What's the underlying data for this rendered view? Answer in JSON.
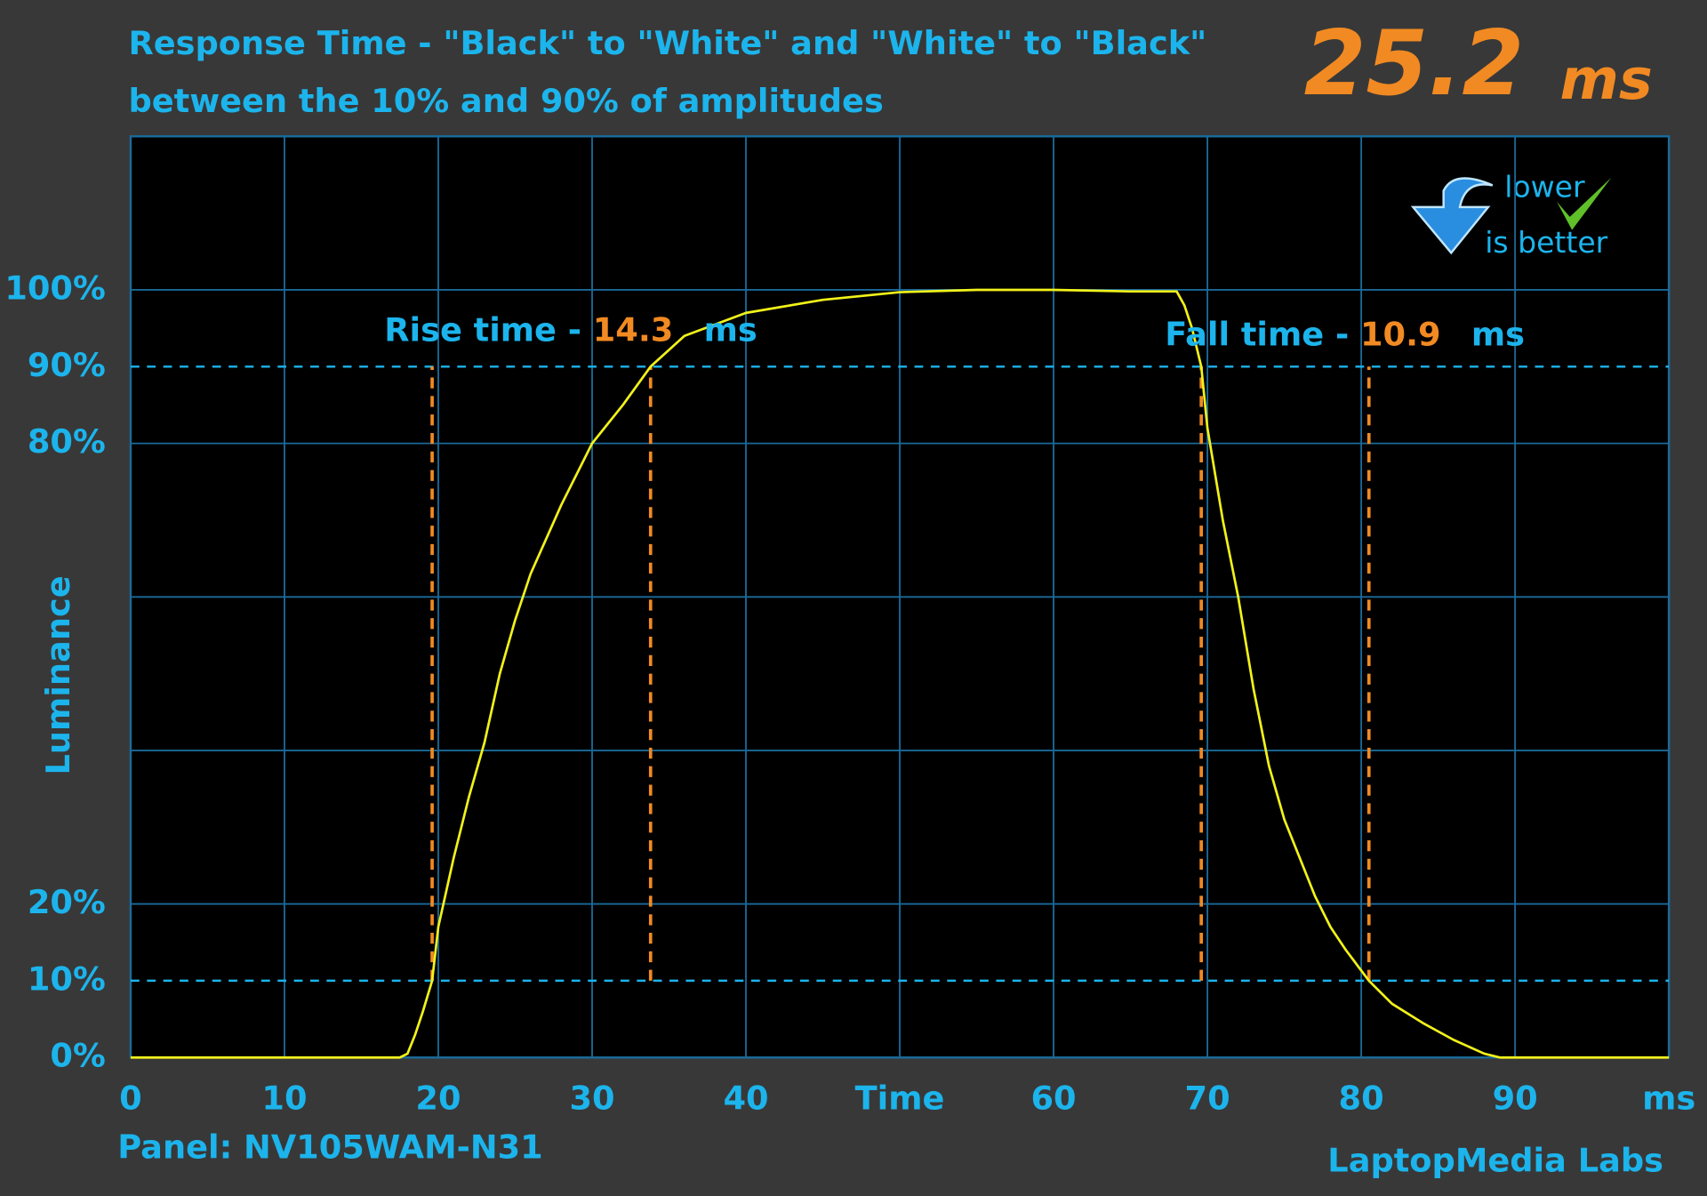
{
  "chart_data": {
    "type": "line",
    "title": "Response Time - \"Black\" to \"White\" and \"White\" to \"Black\"",
    "subtitle": "between the 10% and 90% of amplitudes",
    "result": {
      "value": 25.2,
      "unit": "ms"
    },
    "badge": {
      "line1": "lower",
      "line2": "is better"
    },
    "y_label": "Luminance",
    "panel": "Panel: NV105WAM-N31",
    "credit": "LaptopMedia Labs",
    "rise": {
      "label": "Rise time - ",
      "value": 14.3,
      "unit": "ms",
      "start": 19.6,
      "end": 33.8
    },
    "fall": {
      "label": "Fall time - ",
      "value": 10.9,
      "unit": "ms",
      "start": 69.6,
      "end": 80.5
    },
    "color": "#f2f21a",
    "x": [
      0,
      17.5,
      18,
      18.5,
      19,
      19.6,
      20,
      21,
      22,
      23,
      24,
      25,
      26,
      28,
      30,
      32,
      33.8,
      36,
      40,
      45,
      50,
      55,
      60,
      65,
      68,
      68.5,
      69,
      69.6,
      70,
      71,
      72,
      73,
      74,
      75,
      76,
      77,
      78,
      79,
      80.5,
      82,
      84,
      86,
      88,
      89,
      100
    ],
    "values": [
      0,
      0,
      0.5,
      3,
      6,
      10,
      17,
      26,
      34,
      41,
      50,
      57,
      63,
      72,
      80,
      85,
      90,
      94,
      97,
      98.7,
      99.7,
      100,
      100,
      99.8,
      99.8,
      98,
      95,
      90,
      82,
      70,
      60,
      48,
      38,
      31,
      26,
      21,
      17,
      14,
      10,
      7,
      4.5,
      2.3,
      0.5,
      0,
      0
    ],
    "xlim": [
      0,
      100
    ],
    "ylim": [
      0,
      120
    ],
    "xticks": [
      0,
      10,
      20,
      30,
      40,
      {
        "value": 50,
        "label": "Time"
      },
      60,
      70,
      80,
      90,
      {
        "value": 100,
        "label": "ms"
      }
    ],
    "yticks": [
      {
        "value": 0,
        "label": "0%"
      },
      {
        "value": 10,
        "label": "10%"
      },
      {
        "value": 20,
        "label": "20%"
      },
      {
        "value": 80,
        "label": "80%"
      },
      {
        "value": 90,
        "label": "90%"
      },
      {
        "value": 100,
        "label": "100%"
      }
    ],
    "ygrid": [
      0,
      20,
      40,
      60,
      80,
      100
    ],
    "dashed_ylines": [
      10,
      90
    ],
    "grid": true
  }
}
